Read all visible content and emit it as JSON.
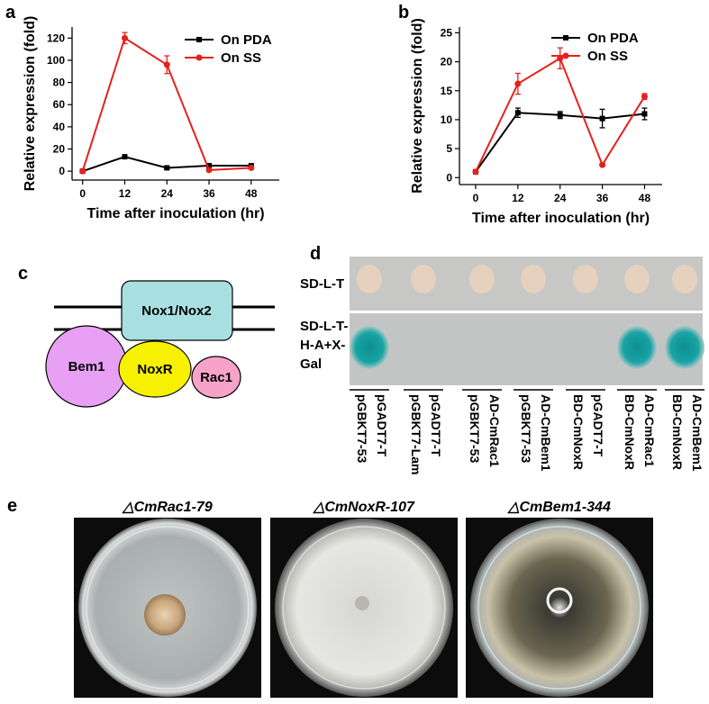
{
  "chart_data": [
    {
      "type": "line",
      "xlabel": "Time after inoculation (hr)",
      "ylabel": "Relative expression (fold)",
      "x": [
        0,
        12,
        24,
        36,
        48
      ],
      "xlim": [
        -3,
        56
      ],
      "xticks": [
        0,
        12,
        24,
        36,
        48
      ],
      "ylim": [
        -8,
        130
      ],
      "yticks": [
        0,
        20,
        40,
        60,
        80,
        100,
        120
      ],
      "series": [
        {
          "name": "On PDA",
          "color": "#000000",
          "marker": "square",
          "values": [
            0,
            13,
            3,
            5,
            5
          ],
          "errors": [
            0.5,
            1,
            0.8,
            0.8,
            0.8
          ]
        },
        {
          "name": "On SS",
          "color": "#e8201c",
          "marker": "circle",
          "values": [
            0,
            120,
            96,
            1,
            3
          ],
          "errors": [
            0.5,
            5,
            8,
            0.8,
            1
          ]
        }
      ]
    },
    {
      "type": "line",
      "xlabel": "Time after inoculation (hr)",
      "ylabel": "Relative expression (fold)",
      "x": [
        0,
        12,
        24,
        36,
        48
      ],
      "xlim": [
        -4.6,
        53
      ],
      "xticks": [
        0,
        12,
        24,
        36,
        48
      ],
      "ylim": [
        -1.2,
        26
      ],
      "yticks": [
        0,
        5,
        10,
        15,
        20,
        25
      ],
      "series": [
        {
          "name": "On PDA",
          "color": "#000000",
          "marker": "square",
          "values": [
            1,
            11.2,
            10.8,
            10.2,
            11.0
          ],
          "errors": [
            0.2,
            0.8,
            0.6,
            1.6,
            1.0
          ]
        },
        {
          "name": "On SS",
          "color": "#e8201c",
          "marker": "circle",
          "values": [
            1,
            16.2,
            20.6,
            2.2,
            14
          ],
          "errors": [
            0.2,
            1.8,
            1.8,
            0.2,
            0.5
          ]
        }
      ]
    }
  ],
  "panel_labels": [
    "a",
    "b",
    "c",
    "d",
    "e"
  ],
  "diagram": {
    "nodes": [
      {
        "label": "Nox1/Nox2"
      },
      {
        "label": "Bem1"
      },
      {
        "label": "NoxR"
      },
      {
        "label": "Rac1"
      }
    ]
  },
  "yeast_assay": {
    "rows": [
      [
        "SD-L-T"
      ],
      [
        "SD-L-T-",
        "H-A+X-",
        "Gal"
      ]
    ],
    "columns": [
      {
        "bait": "pGBKT7-53",
        "prey": "pGADT7-T",
        "blue": true
      },
      {
        "bait": "pGBKT7-Lam",
        "prey": "pGADT7-T",
        "blue": false
      },
      {
        "bait": "pGBKT7-53",
        "prey": "AD-CmRac1",
        "blue": false
      },
      {
        "bait": "pGBKT7-53",
        "prey": "AD-CmBem1",
        "blue": false
      },
      {
        "bait": "BD-CmNoxR",
        "prey": "pGADT7-T",
        "blue": false
      },
      {
        "bait": "BD-CmNoxR",
        "prey": "AD-CmRac1",
        "blue": true
      },
      {
        "bait": "BD-CmNoxR",
        "prey": "AD-CmBem1",
        "blue": true
      }
    ]
  },
  "plates": {
    "titles": [
      "△CmRac1-79",
      "△CmNoxR-107",
      "△CmBem1-344"
    ]
  }
}
